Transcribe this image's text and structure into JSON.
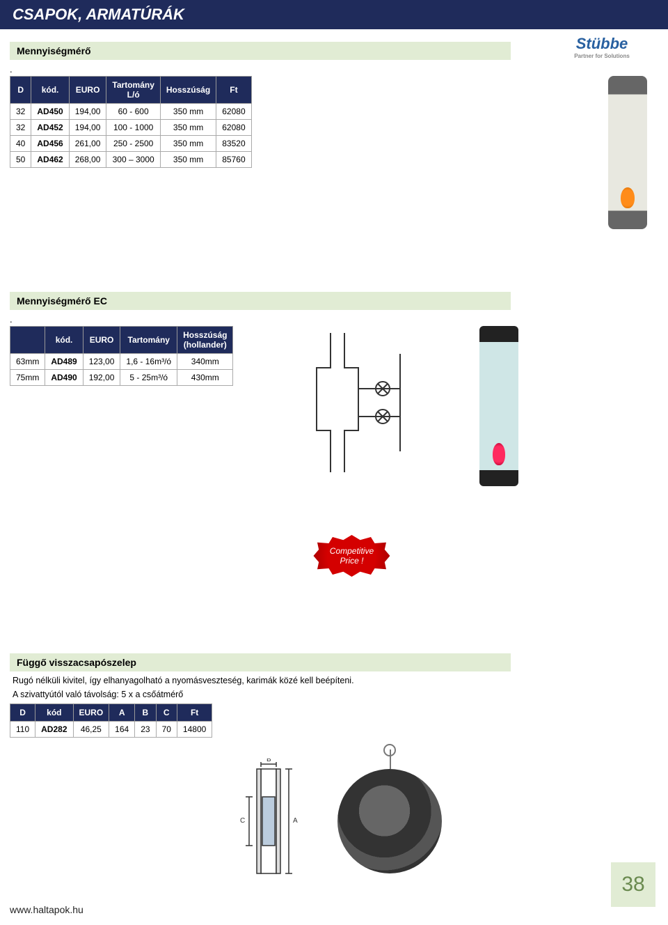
{
  "header": {
    "title": "CSAPOK, ARMATÚRÁK"
  },
  "brand": {
    "name": "Stübbe",
    "tagline": "Partner for Solutions"
  },
  "section1": {
    "title": "Mennyiségmérő",
    "columns": [
      "D",
      "kód.",
      "EURO",
      "Tartomány\nL/ó",
      "Hosszúság",
      "Ft"
    ],
    "rows": [
      [
        "32",
        "AD450",
        "194,00",
        "60 - 600",
        "350 mm",
        "62080"
      ],
      [
        "32",
        "AD452",
        "194,00",
        "100 - 1000",
        "350 mm",
        "62080"
      ],
      [
        "40",
        "AD456",
        "261,00",
        "250 - 2500",
        "350 mm",
        "83520"
      ],
      [
        "50",
        "AD462",
        "268,00",
        "300 – 3000",
        "350 mm",
        "85760"
      ]
    ]
  },
  "section2": {
    "title": "Mennyiségmérő EC",
    "columns": [
      "",
      "kód.",
      "EURO",
      "Tartomány",
      "Hosszúság\n(hollander)"
    ],
    "rows": [
      [
        "63mm",
        "AD489",
        "123,00",
        "1,6 - 16m³/ó",
        "340mm"
      ],
      [
        "75mm",
        "AD490",
        "192,00",
        "5 - 25m³/ó",
        "430mm"
      ]
    ],
    "burst": "Competitive\nPrice !"
  },
  "section3": {
    "title": "Függő visszacsapószelep",
    "desc1": "Rugó nélküli kivitel, így elhanyagolható a nyomásveszteség, karimák közé kell beépíteni.",
    "desc2": "A szivattyútól való távolság:  5 x a csőátmérő",
    "columns": [
      "D",
      "kód",
      "EURO",
      "A",
      "B",
      "C",
      "Ft"
    ],
    "rows": [
      [
        "110",
        "AD282",
        "46,25",
        "164",
        "23",
        "70",
        "14800"
      ]
    ],
    "diag_labels": {
      "a": "A",
      "b": "B",
      "c": "C"
    }
  },
  "footer": {
    "page": "38",
    "url": "www.haltapok.hu"
  },
  "colors": {
    "header_bg": "#1f2b5b",
    "section_bg": "#e1ecd4",
    "page_num_text": "#6a8a4f"
  }
}
